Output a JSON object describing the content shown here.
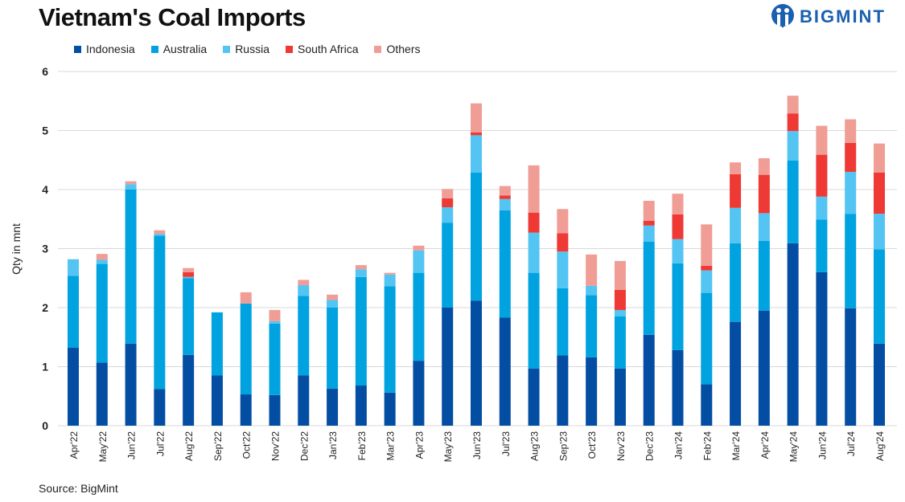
{
  "chart_data": {
    "type": "bar",
    "stacked": true,
    "title": "Vietnam's Coal Imports",
    "ylabel": "Qty in mnt",
    "xlabel": "",
    "ylim": [
      0,
      6
    ],
    "yticks": [
      0,
      1,
      2,
      3,
      4,
      5,
      6
    ],
    "grid": true,
    "legend": "top-left",
    "categories": [
      "Apr'22",
      "May'22",
      "Jun'22",
      "Jul'22",
      "Aug'22",
      "Sep'22",
      "Oct'22",
      "Nov'22",
      "Dec'22",
      "Jan'23",
      "Feb'23",
      "Mar'23",
      "Apr'23",
      "May'23",
      "Jun'23",
      "Jul'23",
      "Aug'23",
      "Sep'23",
      "Oct'23",
      "Nov'23",
      "Dec'23",
      "Jan'24",
      "Feb'24",
      "Mar'24",
      "Apr'24",
      "May'24",
      "Jun'24",
      "Jul'24",
      "Aug'24"
    ],
    "series": [
      {
        "name": "Indonesia",
        "color": "#034ea2",
        "values": [
          1.32,
          1.07,
          1.39,
          0.62,
          1.2,
          0.85,
          0.53,
          0.52,
          0.85,
          0.63,
          0.68,
          0.56,
          1.1,
          2.0,
          2.12,
          1.83,
          0.97,
          1.19,
          1.16,
          0.97,
          1.54,
          1.28,
          0.7,
          1.76,
          1.95,
          3.09,
          2.6,
          1.99,
          1.39
        ]
      },
      {
        "name": "Australia",
        "color": "#00a3e0",
        "values": [
          1.22,
          1.67,
          2.61,
          2.6,
          1.3,
          1.07,
          1.54,
          1.21,
          1.35,
          1.37,
          1.84,
          1.8,
          1.49,
          1.44,
          2.17,
          1.82,
          1.62,
          1.14,
          1.05,
          0.88,
          1.58,
          1.47,
          1.55,
          1.33,
          1.18,
          1.4,
          0.89,
          1.6,
          1.6
        ]
      },
      {
        "name": "Russia",
        "color": "#54c4f2",
        "values": [
          0.28,
          0.07,
          0.09,
          0.03,
          0.02,
          0,
          0,
          0.04,
          0.18,
          0.13,
          0.13,
          0.2,
          0.38,
          0.26,
          0.63,
          0.19,
          0.68,
          0.62,
          0.16,
          0.11,
          0.27,
          0.41,
          0.38,
          0.6,
          0.47,
          0.5,
          0.39,
          0.71,
          0.6
        ]
      },
      {
        "name": "South Africa",
        "color": "#ee3935",
        "values": [
          0,
          0,
          0,
          0,
          0.08,
          0,
          0,
          0,
          0,
          0,
          0,
          0,
          0,
          0.15,
          0.05,
          0.06,
          0.34,
          0.31,
          0,
          0.34,
          0.08,
          0.42,
          0.08,
          0.57,
          0.65,
          0.3,
          0.71,
          0.49,
          0.7
        ]
      },
      {
        "name": "Others",
        "color": "#f09d96",
        "values": [
          0,
          0.1,
          0.05,
          0.06,
          0.07,
          0,
          0.19,
          0.19,
          0.09,
          0.09,
          0.07,
          0.03,
          0.08,
          0.16,
          0.49,
          0.16,
          0.8,
          0.41,
          0.53,
          0.49,
          0.34,
          0.35,
          0.7,
          0.2,
          0.28,
          0.3,
          0.49,
          0.4,
          0.49
        ]
      }
    ]
  },
  "logo": {
    "text": "BIGMINT"
  },
  "source": "Source: BigMint"
}
